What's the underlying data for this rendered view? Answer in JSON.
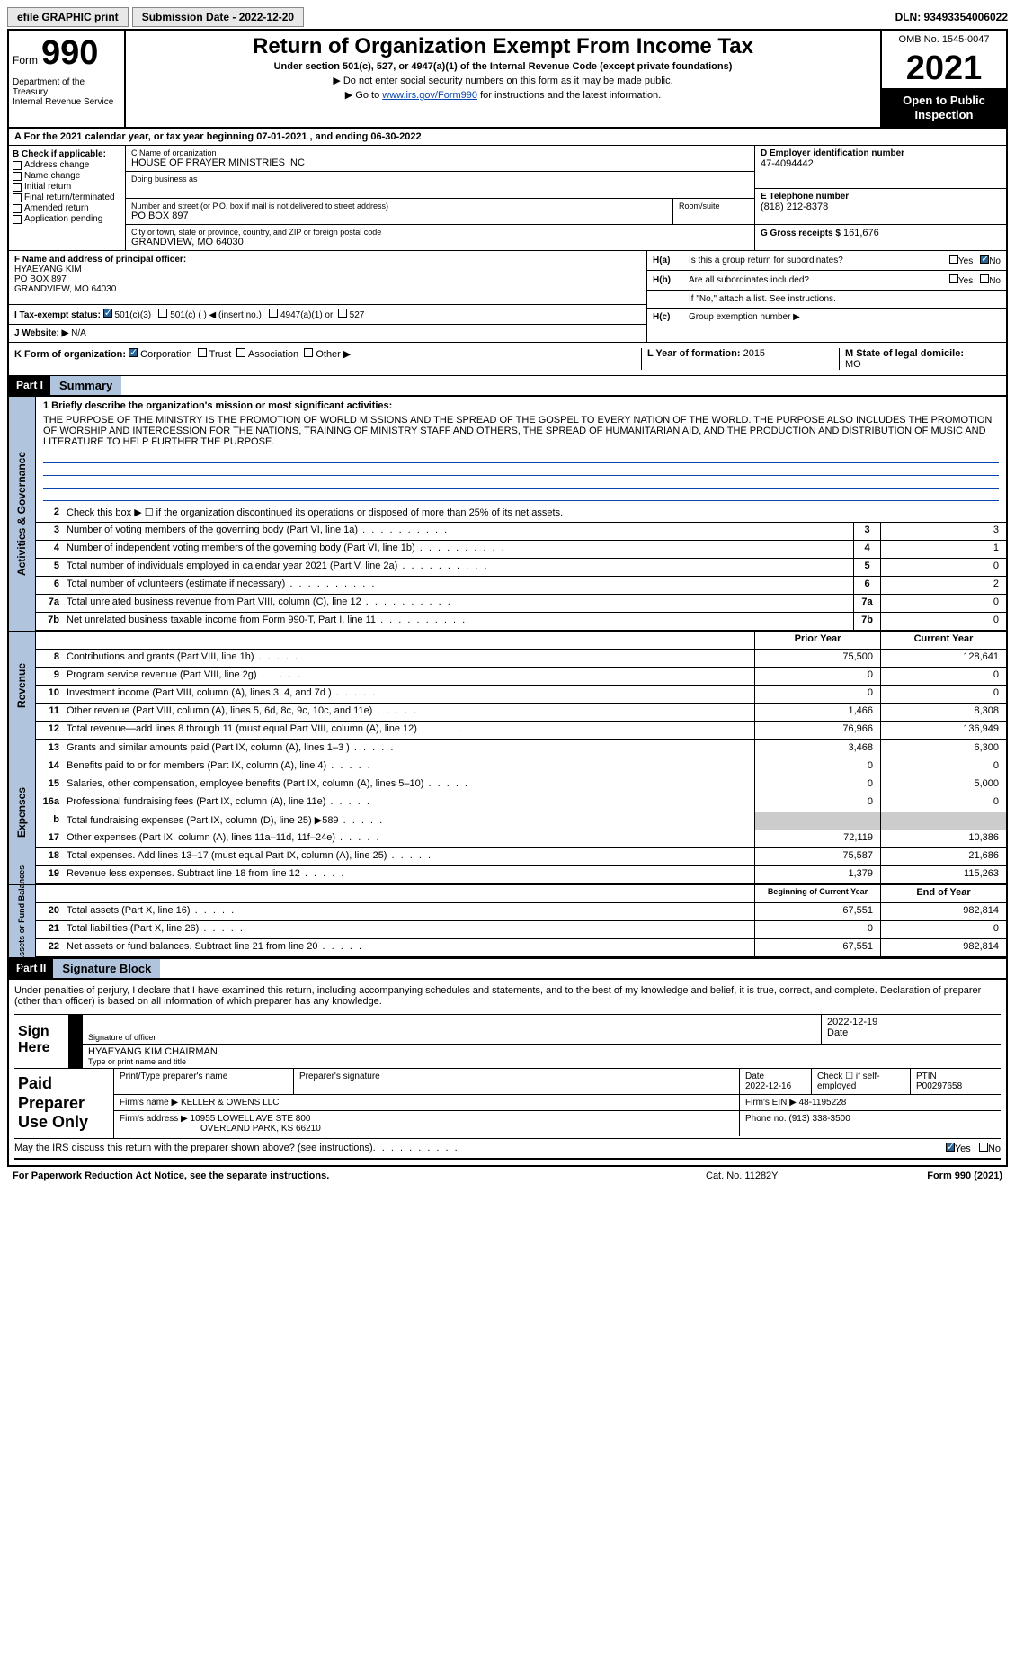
{
  "top": {
    "efile": "efile GRAPHIC print",
    "submission_label": "Submission Date - 2022-12-20",
    "dln": "DLN: 93493354006022"
  },
  "header": {
    "form_word": "Form",
    "form_num": "990",
    "dept": "Department of the Treasury\nInternal Revenue Service",
    "title": "Return of Organization Exempt From Income Tax",
    "subtitle": "Under section 501(c), 527, or 4947(a)(1) of the Internal Revenue Code (except private foundations)",
    "line1": "▶ Do not enter social security numbers on this form as it may be made public.",
    "line2_pre": "▶ Go to ",
    "line2_link": "www.irs.gov/Form990",
    "line2_post": " for instructions and the latest information.",
    "omb": "OMB No. 1545-0047",
    "year": "2021",
    "open": "Open to Public Inspection"
  },
  "A": "For the 2021 calendar year, or tax year beginning 07-01-2021    , and ending 06-30-2022",
  "B": {
    "label": "B Check if applicable:",
    "opts": [
      "Address change",
      "Name change",
      "Initial return",
      "Final return/terminated",
      "Amended return",
      "Application pending"
    ]
  },
  "C": {
    "name_label": "C Name of organization",
    "name": "HOUSE OF PRAYER MINISTRIES INC",
    "dba_label": "Doing business as",
    "dba": "",
    "addr_label": "Number and street (or P.O. box if mail is not delivered to street address)",
    "addr": "PO BOX 897",
    "room_label": "Room/suite",
    "city_label": "City or town, state or province, country, and ZIP or foreign postal code",
    "city": "GRANDVIEW, MO  64030"
  },
  "D": {
    "ein_label": "D Employer identification number",
    "ein": "47-4094442",
    "tel_label": "E Telephone number",
    "tel": "(818) 212-8378",
    "gross_label": "G Gross receipts $",
    "gross": "161,676"
  },
  "F": {
    "label": "F  Name and address of principal officer:",
    "name": "HYAEYANG KIM",
    "addr1": "PO BOX 897",
    "addr2": "GRANDVIEW, MO  64030"
  },
  "H": {
    "a_label": "H(a)",
    "a_text": "Is this a group return for subordinates?",
    "b_label": "H(b)",
    "b_text": "Are all subordinates included?",
    "b_note": "If \"No,\" attach a list. See instructions.",
    "c_label": "H(c)",
    "c_text": "Group exemption number ▶",
    "yes": "Yes",
    "no": "No"
  },
  "I": {
    "label": "I   Tax-exempt status:",
    "o1": "501(c)(3)",
    "o2": "501(c) (   ) ◀ (insert no.)",
    "o3": "4947(a)(1) or",
    "o4": "527"
  },
  "J": {
    "label": "J   Website: ▶",
    "val": "N/A"
  },
  "K": {
    "label": "K Form of organization:",
    "o1": "Corporation",
    "o2": "Trust",
    "o3": "Association",
    "o4": "Other ▶",
    "L_label": "L Year of formation:",
    "L_val": "2015",
    "M_label": "M State of legal domicile:",
    "M_val": "MO"
  },
  "part1": {
    "tab": "Part I",
    "title": "Summary",
    "l1_label": "1  Briefly describe the organization's mission or most significant activities:",
    "l1_text": "THE PURPOSE OF THE MINISTRY IS THE PROMOTION OF WORLD MISSIONS AND THE SPREAD OF THE GOSPEL TO EVERY NATION OF THE WORLD. THE PURPOSE ALSO INCLUDES THE PROMOTION OF WORSHIP AND INTERCESSION FOR THE NATIONS, TRAINING OF MINISTRY STAFF AND OTHERS, THE SPREAD OF HUMANITARIAN AID, AND THE PRODUCTION AND DISTRIBUTION OF MUSIC AND LITERATURE TO HELP FURTHER THE PURPOSE.",
    "l2": "Check this box ▶ ☐  if the organization discontinued its operations or disposed of more than 25% of its net assets.",
    "gov_label": "Activities & Governance",
    "rev_label": "Revenue",
    "exp_label": "Expenses",
    "net_label": "Net Assets or Fund Balances",
    "lines_gov": [
      {
        "n": "3",
        "t": "Number of voting members of the governing body (Part VI, line 1a)",
        "b": "3",
        "v": "3"
      },
      {
        "n": "4",
        "t": "Number of independent voting members of the governing body (Part VI, line 1b)",
        "b": "4",
        "v": "1"
      },
      {
        "n": "5",
        "t": "Total number of individuals employed in calendar year 2021 (Part V, line 2a)",
        "b": "5",
        "v": "0"
      },
      {
        "n": "6",
        "t": "Total number of volunteers (estimate if necessary)",
        "b": "6",
        "v": "2"
      },
      {
        "n": "7a",
        "t": "Total unrelated business revenue from Part VIII, column (C), line 12",
        "b": "7a",
        "v": "0"
      },
      {
        "n": "7b",
        "t": "Net unrelated business taxable income from Form 990-T, Part I, line 11",
        "b": "7b",
        "v": "0"
      }
    ],
    "prior_h": "Prior Year",
    "current_h": "Current Year",
    "lines_rev": [
      {
        "n": "8",
        "t": "Contributions and grants (Part VIII, line 1h)",
        "p": "75,500",
        "c": "128,641"
      },
      {
        "n": "9",
        "t": "Program service revenue (Part VIII, line 2g)",
        "p": "0",
        "c": "0"
      },
      {
        "n": "10",
        "t": "Investment income (Part VIII, column (A), lines 3, 4, and 7d )",
        "p": "0",
        "c": "0"
      },
      {
        "n": "11",
        "t": "Other revenue (Part VIII, column (A), lines 5, 6d, 8c, 9c, 10c, and 11e)",
        "p": "1,466",
        "c": "8,308"
      },
      {
        "n": "12",
        "t": "Total revenue—add lines 8 through 11 (must equal Part VIII, column (A), line 12)",
        "p": "76,966",
        "c": "136,949"
      }
    ],
    "lines_exp": [
      {
        "n": "13",
        "t": "Grants and similar amounts paid (Part IX, column (A), lines 1–3 )",
        "p": "3,468",
        "c": "6,300"
      },
      {
        "n": "14",
        "t": "Benefits paid to or for members (Part IX, column (A), line 4)",
        "p": "0",
        "c": "0"
      },
      {
        "n": "15",
        "t": "Salaries, other compensation, employee benefits (Part IX, column (A), lines 5–10)",
        "p": "0",
        "c": "5,000"
      },
      {
        "n": "16a",
        "t": "Professional fundraising fees (Part IX, column (A), line 11e)",
        "p": "0",
        "c": "0"
      },
      {
        "n": "b",
        "t": "Total fundraising expenses (Part IX, column (D), line 25) ▶589",
        "p": "",
        "c": "",
        "shaded": true
      },
      {
        "n": "17",
        "t": "Other expenses (Part IX, column (A), lines 11a–11d, 11f–24e)",
        "p": "72,119",
        "c": "10,386"
      },
      {
        "n": "18",
        "t": "Total expenses. Add lines 13–17 (must equal Part IX, column (A), line 25)",
        "p": "75,587",
        "c": "21,686"
      },
      {
        "n": "19",
        "t": "Revenue less expenses. Subtract line 18 from line 12",
        "p": "1,379",
        "c": "115,263"
      }
    ],
    "beg_h": "Beginning of Current Year",
    "end_h": "End of Year",
    "lines_net": [
      {
        "n": "20",
        "t": "Total assets (Part X, line 16)",
        "p": "67,551",
        "c": "982,814"
      },
      {
        "n": "21",
        "t": "Total liabilities (Part X, line 26)",
        "p": "0",
        "c": "0"
      },
      {
        "n": "22",
        "t": "Net assets or fund balances. Subtract line 21 from line 20",
        "p": "67,551",
        "c": "982,814"
      }
    ]
  },
  "part2": {
    "tab": "Part II",
    "title": "Signature Block",
    "intro": "Under penalties of perjury, I declare that I have examined this return, including accompanying schedules and statements, and to the best of my knowledge and belief, it is true, correct, and complete. Declaration of preparer (other than officer) is based on all information of which preparer has any knowledge.",
    "sign_here": "Sign Here",
    "sig_officer": "Signature of officer",
    "sig_date": "2022-12-19",
    "date_label": "Date",
    "officer_name": "HYAEYANG KIM  CHAIRMAN",
    "officer_label": "Type or print name and title",
    "paid": "Paid Preparer Use Only",
    "prep_name_h": "Print/Type preparer's name",
    "prep_sig_h": "Preparer's signature",
    "prep_date_h": "Date",
    "prep_date": "2022-12-16",
    "prep_check": "Check ☐ if self-employed",
    "ptin_h": "PTIN",
    "ptin": "P00297658",
    "firm_name_l": "Firm's name    ▶",
    "firm_name": "KELLER & OWENS LLC",
    "firm_ein_l": "Firm's EIN ▶",
    "firm_ein": "48-1195228",
    "firm_addr_l": "Firm's address ▶",
    "firm_addr1": "10955 LOWELL AVE STE 800",
    "firm_addr2": "OVERLAND PARK, KS  66210",
    "phone_l": "Phone no.",
    "phone": "(913) 338-3500",
    "discuss": "May the IRS discuss this return with the preparer shown above? (see instructions)",
    "yes": "Yes",
    "no": "No"
  },
  "footer": {
    "left": "For Paperwork Reduction Act Notice, see the separate instructions.",
    "center": "Cat. No. 11282Y",
    "right_form": "Form ",
    "right_num": "990",
    "right_year": " (2021)"
  }
}
